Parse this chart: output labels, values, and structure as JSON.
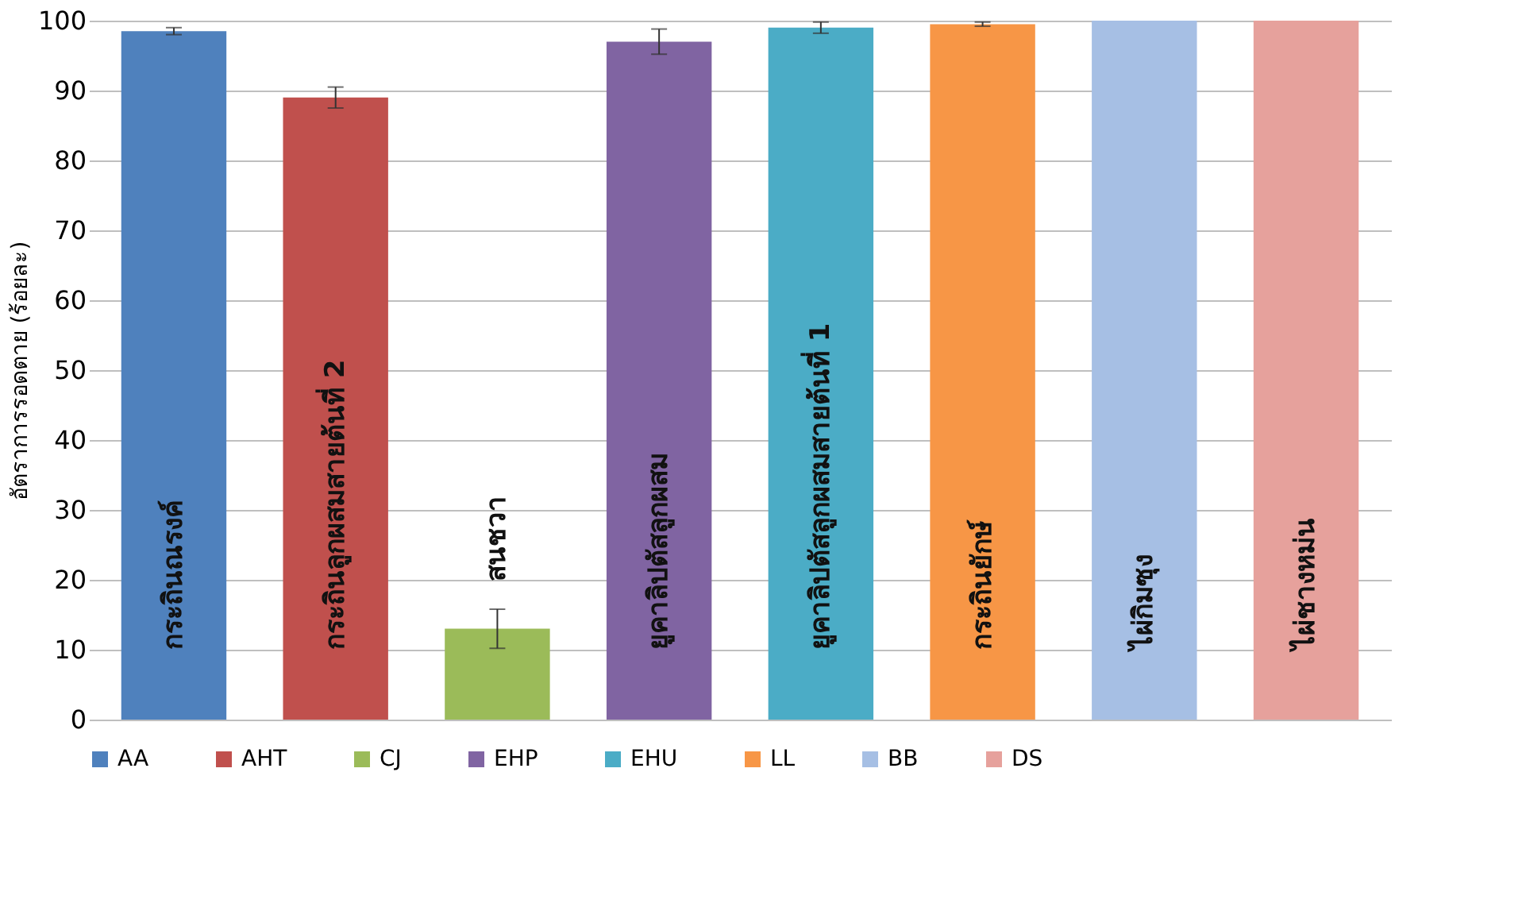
{
  "chart_data": {
    "type": "bar",
    "ylabel": "อัตราการรอดตาย (ร้อยละ)",
    "categories": [
      null,
      null,
      null,
      null,
      null,
      null,
      null,
      null
    ],
    "series": [
      {
        "name": "AA",
        "color": "#4f81bd",
        "values": [
          98.5,
          null,
          null,
          null,
          null,
          null,
          null,
          null
        ],
        "errors": [
          0.5,
          null,
          null,
          null,
          null,
          null,
          null,
          null
        ]
      },
      {
        "name": "AHT",
        "color": "#c0504d",
        "values": [
          null,
          89,
          null,
          null,
          null,
          null,
          null,
          null
        ],
        "errors": [
          null,
          1.5,
          null,
          null,
          null,
          null,
          null,
          null
        ]
      },
      {
        "name": "CJ",
        "color": "#9bbb59",
        "values": [
          null,
          null,
          13,
          null,
          null,
          null,
          null,
          null
        ],
        "errors": [
          null,
          null,
          2.8,
          null,
          null,
          null,
          null,
          null
        ]
      },
      {
        "name": "EHP",
        "color": "#8064a2",
        "values": [
          null,
          null,
          null,
          97,
          null,
          null,
          null,
          null
        ],
        "errors": [
          null,
          null,
          null,
          1.8,
          null,
          null,
          null,
          null
        ]
      },
      {
        "name": "EHU",
        "color": "#4bacc6",
        "values": [
          null,
          null,
          null,
          null,
          99,
          null,
          null,
          null
        ],
        "errors": [
          null,
          null,
          null,
          null,
          0.8,
          null,
          null,
          null
        ]
      },
      {
        "name": "LL",
        "color": "#f79646",
        "values": [
          null,
          null,
          null,
          null,
          null,
          99.5,
          null,
          null
        ],
        "errors": [
          null,
          null,
          null,
          null,
          null,
          0.3,
          null,
          null
        ]
      },
      {
        "name": "BB",
        "color": "#a6bfe4",
        "values": [
          null,
          null,
          null,
          null,
          null,
          null,
          100,
          null
        ]
      },
      {
        "name": "DS",
        "color": "#e6a19c",
        "values": [
          null,
          null,
          null,
          null,
          null,
          null,
          null,
          100
        ]
      }
    ],
    "annotations": [
      "กระถินณรงค์",
      "กระถินลูกผสมสายต้นที่ 2",
      "สนชวา",
      "ยูคาลิปตัสลูกผสม",
      "ยูคาลิปตัสลูกผสมสายต้นที่ 1",
      "กระถินยักษ์",
      "ไผ่กิมซุง",
      "ไผ่ชางหม่น"
    ],
    "ylim": [
      0,
      100
    ],
    "yticks": [
      0,
      10,
      20,
      30,
      40,
      50,
      60,
      70,
      80,
      90,
      100
    ],
    "grid": "y",
    "legend": "bottom"
  }
}
